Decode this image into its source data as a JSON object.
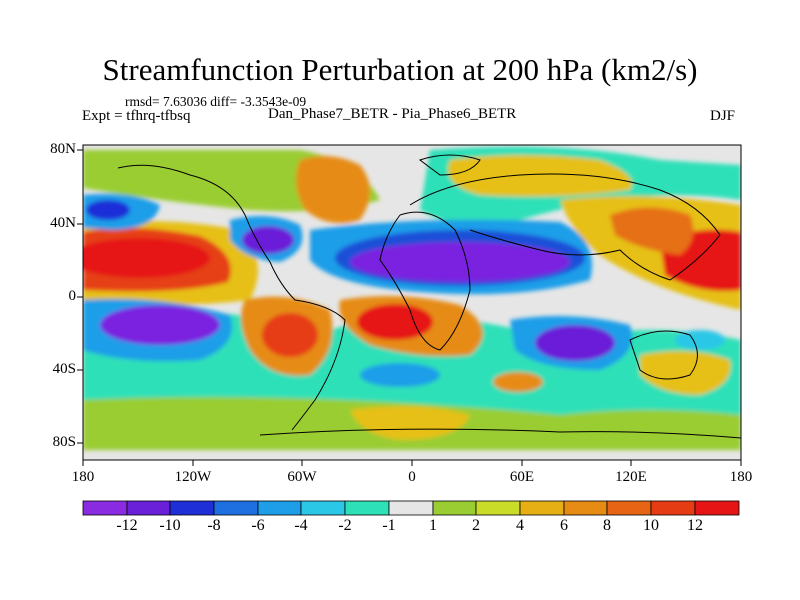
{
  "title": "Streamfunction Perturbation at 200 hPa (km2/s)",
  "stats_text": "rmsd= 7.63036 diff= -3.3543e-09",
  "expt_text": "Expt = tfhrq-tfbsq",
  "subtitle": "Dan_Phase7_BETR - Pia_Phase6_BETR",
  "season": "DJF",
  "lat_ticks": [
    "80N",
    "40N",
    "0",
    "40S",
    "80S"
  ],
  "lon_ticks": [
    "180",
    "120W",
    "60W",
    "0",
    "60E",
    "120E",
    "180"
  ],
  "colorbar": {
    "labels": [
      "-12",
      "-10",
      "-8",
      "-6",
      "-4",
      "-2",
      "-1",
      "1",
      "2",
      "4",
      "6",
      "8",
      "10",
      "12"
    ],
    "colors": [
      "#8a2be2",
      "#6a1fd8",
      "#1f2fd8",
      "#1e6fe0",
      "#1e9ee8",
      "#2ac8e6",
      "#2ee0b8",
      "#e6e6e6",
      "#9acd32",
      "#c8dc28",
      "#e6b014",
      "#e68c14",
      "#e66414",
      "#e63c14",
      "#e61414"
    ]
  },
  "field_colors": {
    "background": "#e6e6e6",
    "strong_negative": "#7a22e0",
    "negative": "#1f4fd8",
    "weak_negative": "#1e9ee8",
    "faint_negative": "#2ee0b8",
    "faint_positive": "#9acd32",
    "weak_positive": "#e6c014",
    "positive": "#e68c14",
    "strong_positive": "#e62814"
  }
}
